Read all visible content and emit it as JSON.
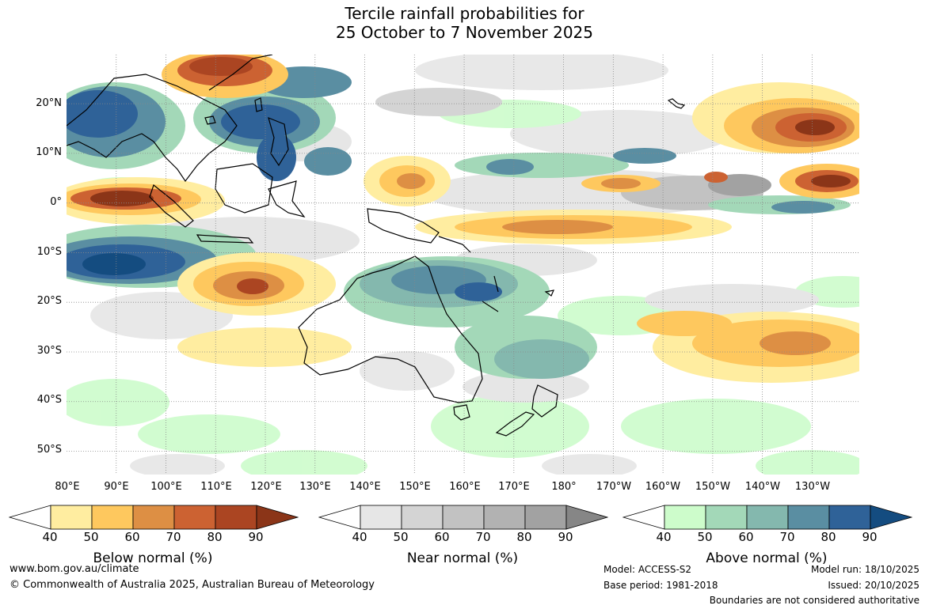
{
  "title": {
    "line1": "Tercile rainfall probabilities for",
    "line2": "25 October to 7 November 2025"
  },
  "axes": {
    "lat_labels": [
      "20°N",
      "10°N",
      "0°",
      "10°S",
      "20°S",
      "30°S",
      "40°S",
      "50°S"
    ],
    "lon_labels": [
      "80°E",
      "90°E",
      "100°E",
      "110°E",
      "120°E",
      "130°E",
      "140°E",
      "150°E",
      "160°E",
      "170°E",
      "180°",
      "170°W",
      "160°W",
      "150°W",
      "140°W",
      "130°W"
    ]
  },
  "map": {
    "lon_range": [
      80,
      239.5
    ],
    "lat_range": [
      -54.7,
      29.9
    ],
    "gridlines": true,
    "gridline_style": "dotted"
  },
  "colorbars": [
    {
      "name": "below",
      "label": "Below normal (%)",
      "ticks": [
        "40",
        "50",
        "60",
        "70",
        "80",
        "90"
      ],
      "colors": [
        "#ffffff",
        "#ffeda0",
        "#fec85e",
        "#dd8f44",
        "#cc6232",
        "#ab4522",
        "#8b3518"
      ]
    },
    {
      "name": "near",
      "label": "Near normal (%)",
      "ticks": [
        "40",
        "50",
        "60",
        "70",
        "80",
        "90"
      ],
      "colors": [
        "#ffffff",
        "#e6e6e6",
        "#d4d4d4",
        "#c2c2c2",
        "#b2b2b2",
        "#a2a2a2",
        "#868686"
      ]
    },
    {
      "name": "above",
      "label": "Above normal (%)",
      "ticks": [
        "40",
        "50",
        "60",
        "70",
        "80",
        "90"
      ],
      "colors": [
        "#ffffff",
        "#cdfccb",
        "#a3d8b8",
        "#84b8ae",
        "#5a8ea2",
        "#2f6298",
        "#144c80"
      ]
    }
  ],
  "footer": {
    "website": "www.bom.gov.au/climate",
    "copyright": "© Commonwealth of Australia 2025, Australian Bureau of Meteorology",
    "model": "Model: ACCESS-S2",
    "base_period": "Base period: 1981-2018",
    "model_run": "Model run: 18/10/2025",
    "issued": "Issued: 20/10/2025",
    "disclaimer": "Boundaries are not considered authoritative"
  }
}
